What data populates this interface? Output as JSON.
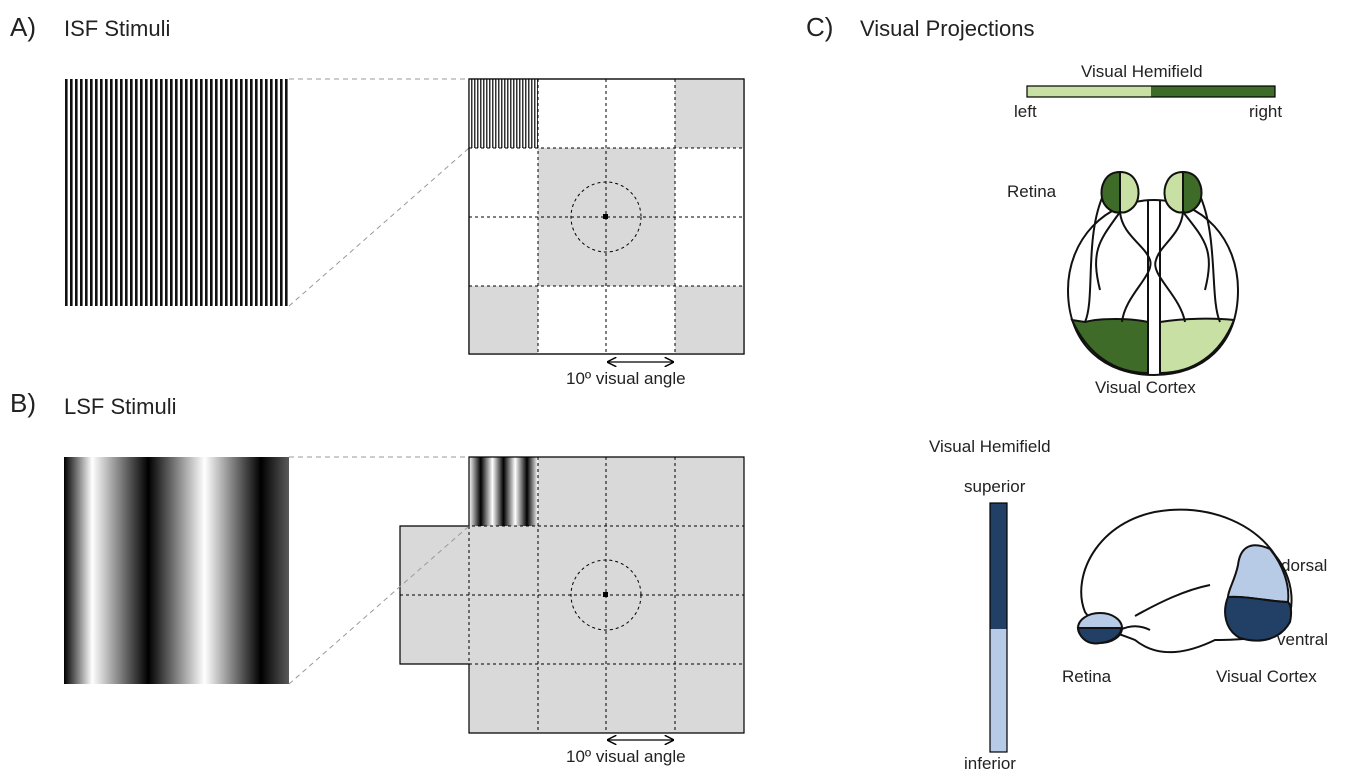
{
  "panel_a": {
    "letter": "A)",
    "title": "ISF Stimuli",
    "angle_label": "10º visual angle"
  },
  "panel_b": {
    "letter": "B)",
    "title": "LSF Stimuli",
    "angle_label": "10º visual angle"
  },
  "panel_c": {
    "letter": "C)",
    "title": "Visual Projections",
    "horizontal": {
      "bar_title": "Visual Hemifield",
      "left_label": "left",
      "right_label": "right",
      "retina_label": "Retina",
      "cortex_label": "Visual Cortex"
    },
    "vertical": {
      "bar_title": "Visual Hemifield",
      "superior_label": "superior",
      "inferior_label": "inferior",
      "dorsal_label": "dorsal",
      "ventral_label": "ventral",
      "retina_label": "Retina",
      "cortex_label": "Visual Cortex"
    }
  },
  "colors": {
    "light_green": "#c9e0a4",
    "dark_green": "#3f6b28",
    "dark_blue": "#223f66",
    "light_blue": "#b7cae6",
    "cell_gray": "#d9d9d9"
  }
}
